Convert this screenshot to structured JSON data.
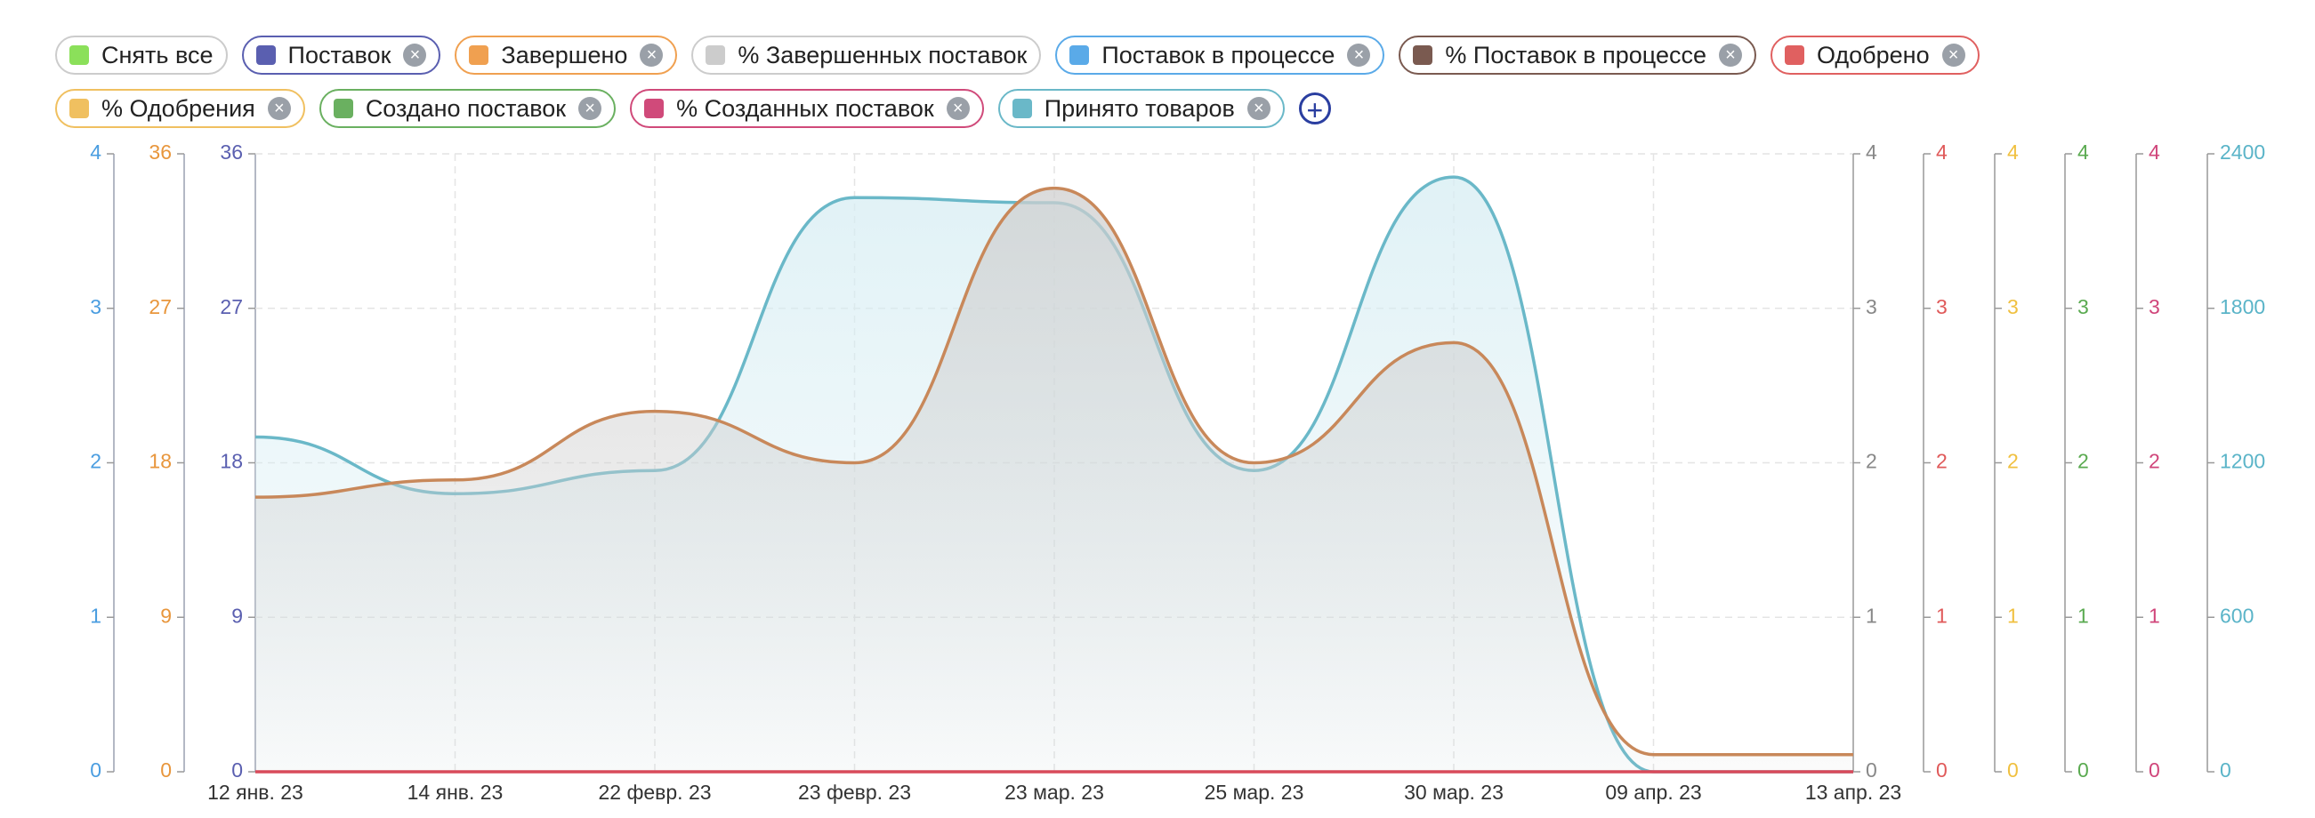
{
  "chart_data": {
    "type": "line",
    "legend": [
      {
        "name": "Снять все",
        "color": "#8be05a",
        "border": "#cccccc",
        "removable": false
      },
      {
        "name": "Поставок",
        "color": "#5a5fb0",
        "border": "#5a5fb0",
        "removable": true
      },
      {
        "name": "Завершено",
        "color": "#f0a050",
        "border": "#f0a050",
        "removable": true
      },
      {
        "name": "% Завершенных поставок",
        "color": "#cccccc",
        "border": "#cccccc",
        "removable": false
      },
      {
        "name": "Поставок в процессе",
        "color": "#5aaae8",
        "border": "#5aaae8",
        "removable": true
      },
      {
        "name": "% Поставок в процессе",
        "color": "#7a5a50",
        "border": "#7a5a50",
        "removable": true
      },
      {
        "name": "Одобрено",
        "color": "#e06060",
        "border": "#e06060",
        "removable": true
      },
      {
        "name": "% Одобрения",
        "color": "#f0c060",
        "border": "#f0c060",
        "removable": true
      },
      {
        "name": "Создано поставок",
        "color": "#6ab060",
        "border": "#6ab060",
        "removable": true
      },
      {
        "name": "% Созданных поставок",
        "color": "#d04a7a",
        "border": "#d04a7a",
        "removable": true
      },
      {
        "name": "Принято товаров",
        "color": "#6ab8c8",
        "border": "#6ab8c8",
        "removable": true
      }
    ],
    "categories": [
      "12 янв. 23",
      "14 янв. 23",
      "22 февр. 23",
      "23 февр. 23",
      "23 мар. 23",
      "25 мар. 23",
      "30 мар. 23",
      "09 апр. 23",
      "13 апр. 23"
    ],
    "axes": [
      {
        "side": "left",
        "color": "#4a9de0",
        "ylim": [
          0,
          4
        ],
        "yticks": [
          0,
          1,
          2,
          3,
          4
        ]
      },
      {
        "side": "left",
        "color": "#e8963c",
        "ylim": [
          0,
          36
        ],
        "yticks": [
          0,
          9,
          18,
          27,
          36
        ]
      },
      {
        "side": "left",
        "color": "#5a5fb0",
        "ylim": [
          0,
          36
        ],
        "yticks": [
          0,
          9,
          18,
          27,
          36
        ]
      },
      {
        "side": "right",
        "color": "#888888",
        "ylim": [
          0,
          4
        ],
        "yticks": [
          0,
          1,
          2,
          3,
          4
        ]
      },
      {
        "side": "right",
        "color": "#e05a5a",
        "ylim": [
          0,
          4
        ],
        "yticks": [
          0,
          1,
          2,
          3,
          4
        ]
      },
      {
        "side": "right",
        "color": "#f0c040",
        "ylim": [
          0,
          4
        ],
        "yticks": [
          0,
          1,
          2,
          3,
          4
        ]
      },
      {
        "side": "right",
        "color": "#5aaa50",
        "ylim": [
          0,
          4
        ],
        "yticks": [
          0,
          1,
          2,
          3,
          4
        ]
      },
      {
        "side": "right",
        "color": "#d0457a",
        "ylim": [
          0,
          4
        ],
        "yticks": [
          0,
          1,
          2,
          3,
          4
        ]
      },
      {
        "side": "right",
        "color": "#5ab4c8",
        "ylim": [
          0,
          2400
        ],
        "yticks": [
          0,
          600,
          1200,
          1800,
          2400
        ]
      }
    ],
    "series": [
      {
        "name": "Принято товаров",
        "color": "#6ab8c8",
        "axis": 8,
        "fill": "#d6edf3",
        "values": [
          1300,
          1080,
          1170,
          2230,
          2210,
          1170,
          2310,
          0,
          0
        ]
      },
      {
        "name": "Завершено",
        "color": "#c8885a",
        "axis": 1,
        "fill": "#cfcfcf",
        "values": [
          16,
          17,
          21,
          18,
          34,
          18,
          25,
          1,
          1
        ]
      },
      {
        "name": "Одобрено",
        "color": "#d84a5a",
        "axis": 4,
        "values": [
          0,
          0,
          0,
          0,
          0,
          0,
          0,
          0,
          0
        ]
      }
    ],
    "grid": true
  }
}
